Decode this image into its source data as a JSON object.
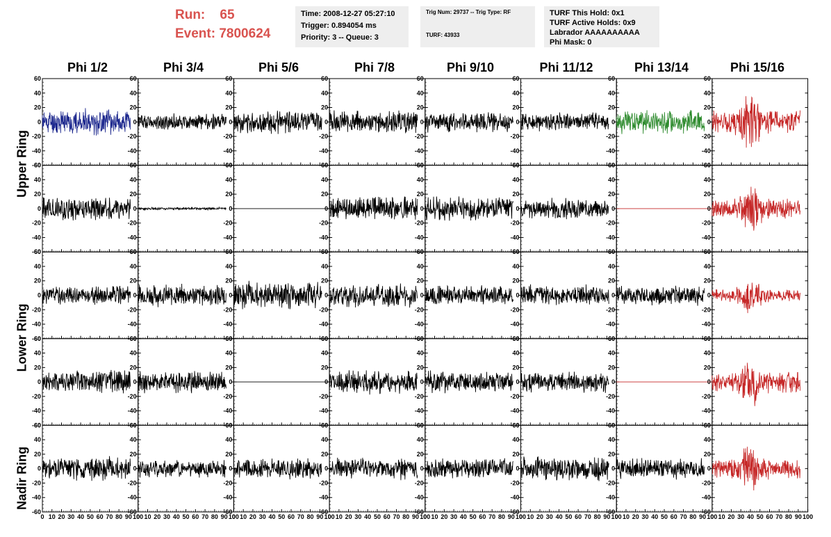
{
  "header": {
    "run_label": "Run:",
    "run_value": "65",
    "event_label": "Event:",
    "event_value": "7800624",
    "time_line": "Time: 2008-12-27 05:27:10",
    "trigger_line": "Trigger: 0.894054 ms",
    "priority_line": "Priority: 3 -- Queue: 3",
    "trig_line": "Trig Num: 29737 -- Trig Type: RF",
    "turf_line": "TURF: 43933",
    "turf_hold": "TURF This Hold: 0x1",
    "turf_active": "TURF Active Holds: 0x9",
    "labrador": "Labrador AAAAAAAAAA",
    "phi_mask": "Phi Mask: 0"
  },
  "columns": [
    "Phi 1/2",
    "Phi 3/4",
    "Phi 5/6",
    "Phi 7/8",
    "Phi 9/10",
    "Phi 11/12",
    "Phi 13/14",
    "Phi 15/16"
  ],
  "rings": [
    "Upper Ring",
    "Lower Ring",
    "Nadir Ring"
  ],
  "colors": {
    "black": "#000000",
    "blue": "#1f2a8f",
    "green": "#2e8b2e",
    "red": "#c62828"
  },
  "chart_data": {
    "type": "line",
    "xlim": [
      0,
      100
    ],
    "ylim": [
      -60,
      60
    ],
    "xticks": [
      0,
      10,
      20,
      30,
      40,
      50,
      60,
      70,
      80,
      90,
      100
    ],
    "x_tick_labels": [
      "0",
      "10",
      "20",
      "30",
      "40",
      "50",
      "60",
      "70",
      "80",
      "90",
      "100"
    ],
    "yticks": [
      -60,
      -40,
      -20,
      0,
      20,
      40,
      60
    ],
    "y_tick_labels": [
      "-60",
      "-40",
      "-20",
      "0",
      "20",
      "40",
      "60"
    ],
    "panels": [
      [
        {
          "color": "blue",
          "amp": 14,
          "seed": 11
        },
        {
          "color": "black",
          "amp": 9,
          "seed": 12
        },
        {
          "color": "black",
          "amp": 12,
          "seed": 13
        },
        {
          "color": "black",
          "amp": 12,
          "seed": 14
        },
        {
          "color": "black",
          "amp": 11,
          "seed": 15
        },
        {
          "color": "black",
          "amp": 10,
          "seed": 16
        },
        {
          "color": "green",
          "amp": 13,
          "seed": 17
        },
        {
          "color": "red",
          "amp": 18,
          "burst": true,
          "seed": 18
        }
      ],
      [
        {
          "color": "black",
          "amp": 13,
          "seed": 21
        },
        {
          "color": "black",
          "amp": 1.5,
          "seed": 22
        },
        {
          "color": "black",
          "amp": 0,
          "seed": 23
        },
        {
          "color": "black",
          "amp": 13,
          "seed": 24
        },
        {
          "color": "black",
          "amp": 13,
          "seed": 25
        },
        {
          "color": "black",
          "amp": 11,
          "seed": 26
        },
        {
          "color": "red",
          "amp": 0,
          "seed": 27
        },
        {
          "color": "red",
          "amp": 15,
          "burst": true,
          "seed": 28
        }
      ],
      [
        {
          "color": "black",
          "amp": 10,
          "seed": 31
        },
        {
          "color": "black",
          "amp": 12,
          "seed": 32
        },
        {
          "color": "black",
          "amp": 15,
          "seed": 33
        },
        {
          "color": "black",
          "amp": 13,
          "seed": 34
        },
        {
          "color": "black",
          "amp": 11,
          "seed": 35
        },
        {
          "color": "black",
          "amp": 11,
          "seed": 36
        },
        {
          "color": "black",
          "amp": 11,
          "seed": 37
        },
        {
          "color": "red",
          "amp": 10,
          "burst": true,
          "seed": 38
        }
      ],
      [
        {
          "color": "black",
          "amp": 13,
          "seed": 41
        },
        {
          "color": "black",
          "amp": 12,
          "seed": 42
        },
        {
          "color": "black",
          "amp": 0,
          "seed": 43
        },
        {
          "color": "black",
          "amp": 13,
          "seed": 44
        },
        {
          "color": "black",
          "amp": 12,
          "seed": 45
        },
        {
          "color": "black",
          "amp": 11,
          "seed": 46
        },
        {
          "color": "red",
          "amp": 0,
          "seed": 47
        },
        {
          "color": "red",
          "amp": 16,
          "burst": true,
          "seed": 48
        }
      ],
      [
        {
          "color": "black",
          "amp": 13,
          "seed": 51
        },
        {
          "color": "black",
          "amp": 10,
          "seed": 52
        },
        {
          "color": "black",
          "amp": 11,
          "seed": 53
        },
        {
          "color": "black",
          "amp": 12,
          "seed": 54
        },
        {
          "color": "black",
          "amp": 11,
          "seed": 55
        },
        {
          "color": "black",
          "amp": 13,
          "seed": 56
        },
        {
          "color": "black",
          "amp": 11,
          "seed": 57
        },
        {
          "color": "red",
          "amp": 15,
          "burst": true,
          "seed": 58
        }
      ]
    ]
  }
}
